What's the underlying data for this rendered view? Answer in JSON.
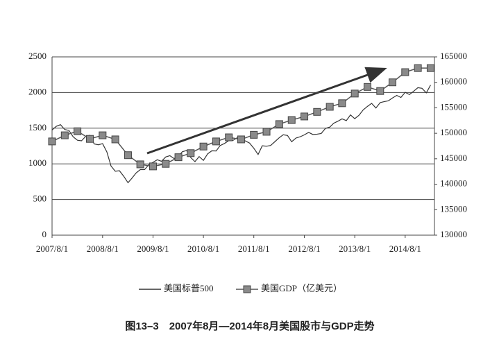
{
  "chart_data": {
    "type": "line",
    "caption": "图13–3　2007年8月—2014年8月美国股市与GDP走势",
    "xlim": [
      "2007/8/1",
      "2015/3/1"
    ],
    "xticks": [
      "2007/8/1",
      "2008/8/1",
      "2009/8/1",
      "2010/8/1",
      "2011/8/1",
      "2012/8/1",
      "2013/8/1",
      "2014/8/1"
    ],
    "ylim": [
      0,
      2500
    ],
    "yticks": [
      0,
      500,
      1000,
      1500,
      2000,
      2500
    ],
    "y2lim": [
      130000,
      165000
    ],
    "y2ticks": [
      130000,
      135000,
      140000,
      145000,
      150000,
      155000,
      160000,
      165000
    ],
    "grid": true,
    "legend": "bottom",
    "series": [
      {
        "name": "美国标普500",
        "color": "#333333",
        "axis": "y",
        "x": [
          "2007/8/1",
          "2007/9/1",
          "2007/10/1",
          "2007/11/1",
          "2007/12/1",
          "2008/1/1",
          "2008/2/1",
          "2008/3/1",
          "2008/4/1",
          "2008/5/1",
          "2008/6/1",
          "2008/7/1",
          "2008/8/1",
          "2008/9/1",
          "2008/10/1",
          "2008/11/1",
          "2008/12/1",
          "2009/1/1",
          "2009/2/1",
          "2009/3/1",
          "2009/4/1",
          "2009/5/1",
          "2009/6/1",
          "2009/7/1",
          "2009/8/1",
          "2009/9/1",
          "2009/10/1",
          "2009/11/1",
          "2009/12/1",
          "2010/1/1",
          "2010/2/1",
          "2010/3/1",
          "2010/4/1",
          "2010/5/1",
          "2010/6/1",
          "2010/7/1",
          "2010/8/1",
          "2010/9/1",
          "2010/10/1",
          "2010/11/1",
          "2010/12/1",
          "2011/1/1",
          "2011/2/1",
          "2011/3/1",
          "2011/4/1",
          "2011/5/1",
          "2011/6/1",
          "2011/7/1",
          "2011/8/1",
          "2011/9/1",
          "2011/10/1",
          "2011/11/1",
          "2011/12/1",
          "2012/1/1",
          "2012/2/1",
          "2012/3/1",
          "2012/4/1",
          "2012/5/1",
          "2012/6/1",
          "2012/7/1",
          "2012/8/1",
          "2012/9/1",
          "2012/10/1",
          "2012/11/1",
          "2012/12/1",
          "2013/1/1",
          "2013/2/1",
          "2013/3/1",
          "2013/4/1",
          "2013/5/1",
          "2013/6/1",
          "2013/7/1",
          "2013/8/1",
          "2013/9/1",
          "2013/10/1",
          "2013/11/1",
          "2013/12/1",
          "2014/1/1",
          "2014/2/1",
          "2014/3/1",
          "2014/4/1",
          "2014/5/1",
          "2014/6/1",
          "2014/7/1",
          "2014/8/1",
          "2014/9/1",
          "2014/10/1",
          "2014/11/1",
          "2014/12/1",
          "2015/1/1",
          "2015/2/1"
        ],
        "values": [
          1474,
          1527,
          1549,
          1481,
          1468,
          1379,
          1331,
          1323,
          1386,
          1400,
          1280,
          1267,
          1283,
          1166,
          969,
          896,
          903,
          826,
          735,
          798,
          873,
          919,
          919,
          987,
          1021,
          1057,
          1036,
          1096,
          1115,
          1074,
          1104,
          1169,
          1187,
          1089,
          1031,
          1102,
          1049,
          1141,
          1183,
          1181,
          1258,
          1286,
          1327,
          1326,
          1364,
          1345,
          1321,
          1292,
          1219,
          1131,
          1253,
          1247,
          1258,
          1312,
          1366,
          1408,
          1398,
          1310,
          1362,
          1379,
          1407,
          1441,
          1412,
          1416,
          1426,
          1498,
          1515,
          1569,
          1598,
          1631,
          1606,
          1686,
          1633,
          1682,
          1757,
          1806,
          1848,
          1783,
          1859,
          1872,
          1884,
          1924,
          1960,
          1931,
          2003,
          1972,
          2018,
          2068,
          2059,
          1995,
          2105
        ]
      },
      {
        "name": "美国GDP（亿美元）",
        "color": "#555555",
        "axis": "y2",
        "x": [
          "2007/8/1",
          "2007/11/1",
          "2008/2/1",
          "2008/5/1",
          "2008/8/1",
          "2008/11/1",
          "2009/2/1",
          "2009/5/1",
          "2009/8/1",
          "2009/11/1",
          "2010/2/1",
          "2010/5/1",
          "2010/8/1",
          "2010/11/1",
          "2011/2/1",
          "2011/5/1",
          "2011/8/1",
          "2011/11/1",
          "2012/2/1",
          "2012/5/1",
          "2012/8/1",
          "2012/11/1",
          "2013/2/1",
          "2013/5/1",
          "2013/8/1",
          "2013/11/1",
          "2014/2/1",
          "2014/5/1",
          "2014/8/1",
          "2014/11/1",
          "2015/2/1"
        ],
        "values": [
          148400,
          149600,
          150400,
          148900,
          149600,
          148800,
          145700,
          143900,
          143500,
          144000,
          145300,
          146100,
          147400,
          148400,
          149200,
          148800,
          149700,
          150300,
          151800,
          152600,
          153300,
          154200,
          155200,
          155900,
          157800,
          159100,
          158300,
          160000,
          162000,
          162800,
          162800
        ]
      }
    ]
  }
}
